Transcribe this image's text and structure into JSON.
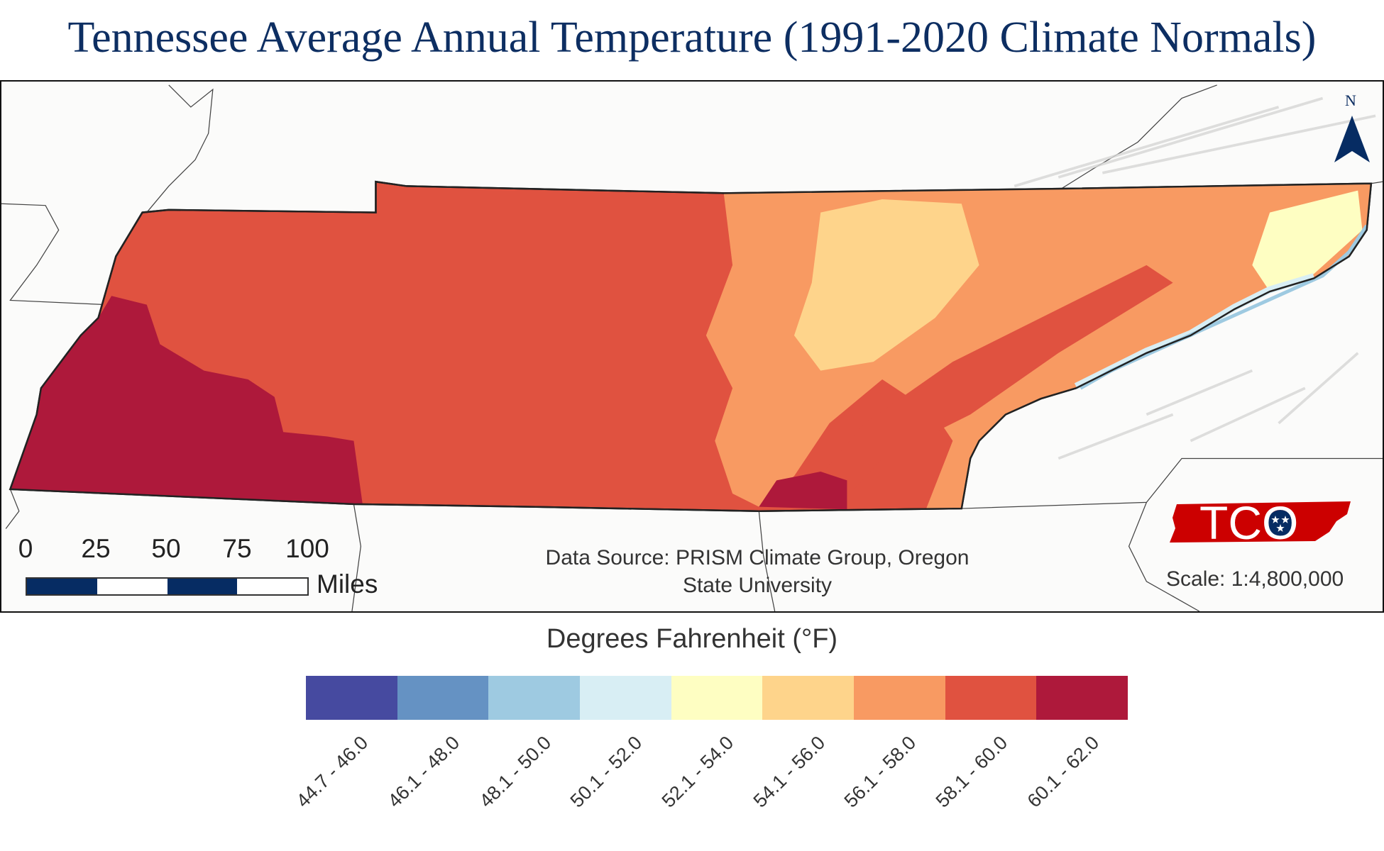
{
  "title": "Tennessee Average Annual Temperature (1991-2020 Climate Normals)",
  "map": {
    "north_label": "N",
    "north_arrow_icon": "north-arrow-icon",
    "scale_bar": {
      "ticks": [
        "0",
        "25",
        "50",
        "75",
        "100"
      ],
      "unit": "Miles",
      "colors": [
        "#062c63",
        "#ffffff",
        "#062c63",
        "#ffffff"
      ]
    },
    "data_source_line1": "Data Source: PRISM Climate Group, Oregon",
    "data_source_line2": "State University",
    "logo_text": "TCO",
    "logo_color": "#cc0000",
    "scale_text": "Scale: 1:4,800,000"
  },
  "legend": {
    "title": "Degrees Fahrenheit (°F)",
    "bins": [
      {
        "label": "44.7 - 46.0",
        "color": "#464aa0"
      },
      {
        "label": "46.1 - 48.0",
        "color": "#6592c3"
      },
      {
        "label": "48.1 - 50.0",
        "color": "#9ecae1"
      },
      {
        "label": "50.1 - 52.0",
        "color": "#d8eef4"
      },
      {
        "label": "52.1 - 54.0",
        "color": "#fefec2"
      },
      {
        "label": "54.1 - 56.0",
        "color": "#fed48b"
      },
      {
        "label": "56.1 - 58.0",
        "color": "#f89a62"
      },
      {
        "label": "58.1 - 60.0",
        "color": "#e05240"
      },
      {
        "label": "60.1 - 62.0",
        "color": "#ae193b"
      }
    ]
  }
}
